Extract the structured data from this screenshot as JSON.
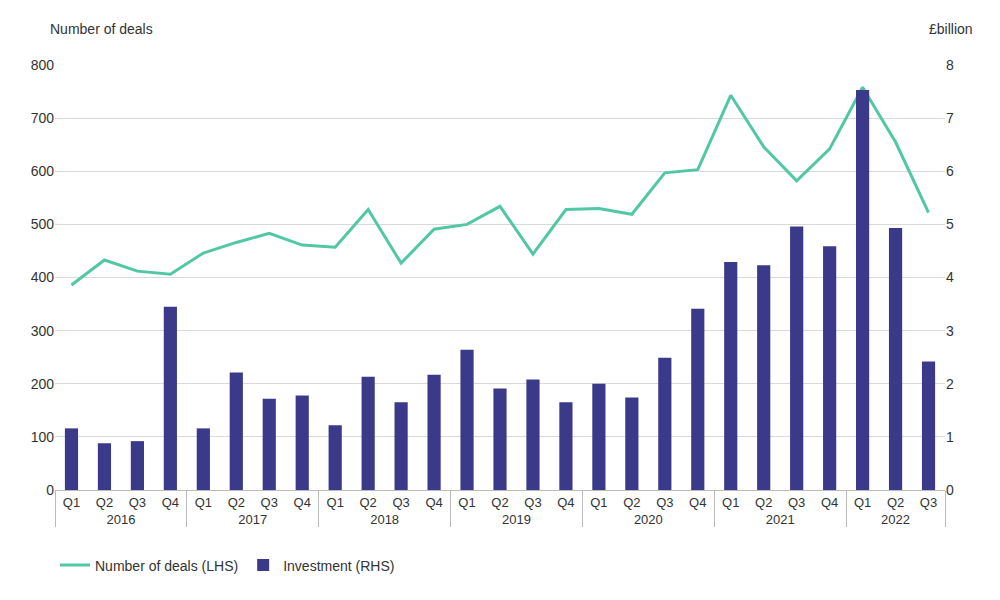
{
  "chart_data": {
    "type": "bar",
    "y_label": "Number of deals",
    "y2_label": "£billion",
    "categories": [
      "Q1",
      "Q2",
      "Q3",
      "Q4",
      "Q1",
      "Q2",
      "Q3",
      "Q4",
      "Q1",
      "Q2",
      "Q3",
      "Q4",
      "Q1",
      "Q2",
      "Q3",
      "Q4",
      "Q1",
      "Q2",
      "Q3",
      "Q4",
      "Q1",
      "Q2",
      "Q3",
      "Q4",
      "Q1",
      "Q2",
      "Q3"
    ],
    "category_groups": [
      "2016",
      "2016",
      "2016",
      "2016",
      "2017",
      "2017",
      "2017",
      "2017",
      "2018",
      "2018",
      "2018",
      "2018",
      "2019",
      "2019",
      "2019",
      "2019",
      "2020",
      "2020",
      "2020",
      "2020",
      "2021",
      "2021",
      "2021",
      "2021",
      "2022",
      "2022",
      "2022"
    ],
    "series": [
      {
        "name": "Investment (RHS)",
        "type": "bar",
        "axis": "y2",
        "color": "#3b3a8a",
        "values": [
          1.16,
          0.88,
          0.92,
          3.45,
          1.16,
          2.21,
          1.72,
          1.78,
          1.22,
          2.13,
          1.65,
          2.17,
          2.64,
          1.91,
          2.08,
          1.65,
          2.0,
          1.74,
          2.49,
          3.41,
          4.29,
          4.23,
          4.96,
          4.59,
          7.53,
          4.93,
          2.42
        ]
      },
      {
        "name": "Number of deals (LHS)",
        "type": "line",
        "color": "#52c7a4",
        "values": [
          386,
          433,
          412,
          406,
          446,
          466,
          483,
          461,
          457,
          528,
          427,
          491,
          500,
          534,
          444,
          528,
          530,
          519,
          597,
          603,
          743,
          646,
          582,
          642,
          758,
          655,
          522
        ]
      }
    ],
    "ylim": [
      0,
      800
    ],
    "yticks": [
      0,
      100,
      200,
      300,
      400,
      500,
      600,
      700,
      800
    ],
    "y2lim": [
      0,
      8
    ],
    "y2ticks": [
      0,
      1,
      2,
      3,
      4,
      5,
      6,
      7,
      8
    ],
    "grid": true,
    "legend": "bottom left"
  }
}
